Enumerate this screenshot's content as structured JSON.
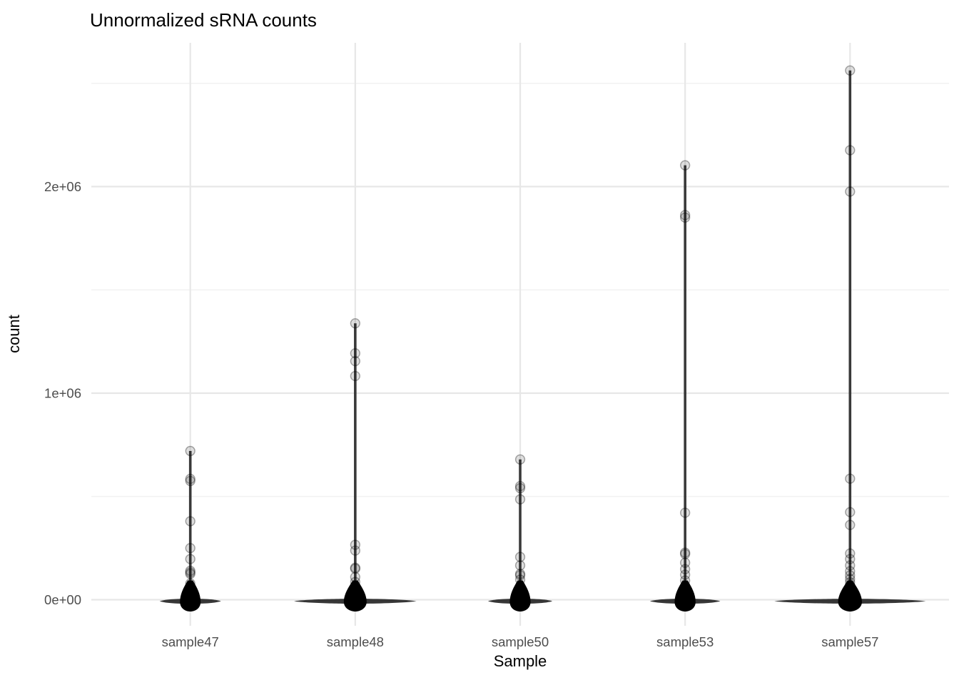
{
  "chart_data": {
    "type": "violin",
    "title": "Unnormalized sRNA counts",
    "xlabel": "Sample",
    "ylabel": "count",
    "legend": "none",
    "background": "white",
    "grid": {
      "major": true,
      "minor": true
    },
    "categories": [
      "sample47",
      "sample48",
      "sample50",
      "sample53",
      "sample57"
    ],
    "y_axis": {
      "tick_labels": [
        "0e+00",
        "1e+06",
        "2e+06"
      ],
      "tick_values": [
        0,
        1000000,
        2000000
      ],
      "minor_values": [
        500000,
        1500000,
        2500000
      ],
      "ylim": [
        -130000,
        2690000
      ]
    },
    "series": [
      {
        "name": "sample47",
        "violin_max": 720000,
        "base_halfwidth_frac": 0.186,
        "zero_cluster": true,
        "points": [
          720000,
          585000,
          575000,
          380000,
          250000,
          197000,
          140000,
          132000,
          125000,
          79000,
          52000,
          40000,
          30000,
          22000,
          15000,
          10000,
          6000,
          3000
        ]
      },
      {
        "name": "sample48",
        "violin_max": 1338000,
        "base_halfwidth_frac": 0.371,
        "zero_cluster": true,
        "points": [
          1338000,
          1193000,
          1155000,
          1083000,
          266000,
          238000,
          155000,
          150000,
          110000,
          86000,
          60000,
          45000,
          32000,
          22000,
          14000,
          8000,
          4000
        ]
      },
      {
        "name": "sample50",
        "violin_max": 679000,
        "base_halfwidth_frac": 0.195,
        "zero_cluster": true,
        "points": [
          679000,
          550000,
          540000,
          486000,
          207000,
          166000,
          125000,
          118000,
          97000,
          62000,
          45000,
          30000,
          20000,
          12000,
          6000
        ]
      },
      {
        "name": "sample53",
        "violin_max": 2103000,
        "base_halfwidth_frac": 0.213,
        "zero_cluster": true,
        "points": [
          2103000,
          1862000,
          1850000,
          421000,
          228000,
          221000,
          179000,
          148000,
          121000,
          93000,
          65000,
          48000,
          34000,
          22000,
          14000,
          7000
        ]
      },
      {
        "name": "sample57",
        "violin_max": 2562000,
        "base_halfwidth_frac": 0.459,
        "zero_cluster": true,
        "points": [
          2562000,
          2176000,
          1976000,
          586000,
          424000,
          362000,
          224000,
          197000,
          166000,
          138000,
          118000,
          100000,
          84000,
          68000,
          54000,
          42000,
          30000,
          20000,
          12000,
          6000
        ]
      }
    ],
    "colors": {
      "title_text": "#000000",
      "tick_text": "#4d4d4d",
      "grid_major": "#e7e7e7",
      "grid_minor": "#f2f2f2",
      "violin": "#262626",
      "blob": "#000000",
      "point_fill_alpha": 0.13,
      "point_stroke_alpha": 0.33
    }
  }
}
